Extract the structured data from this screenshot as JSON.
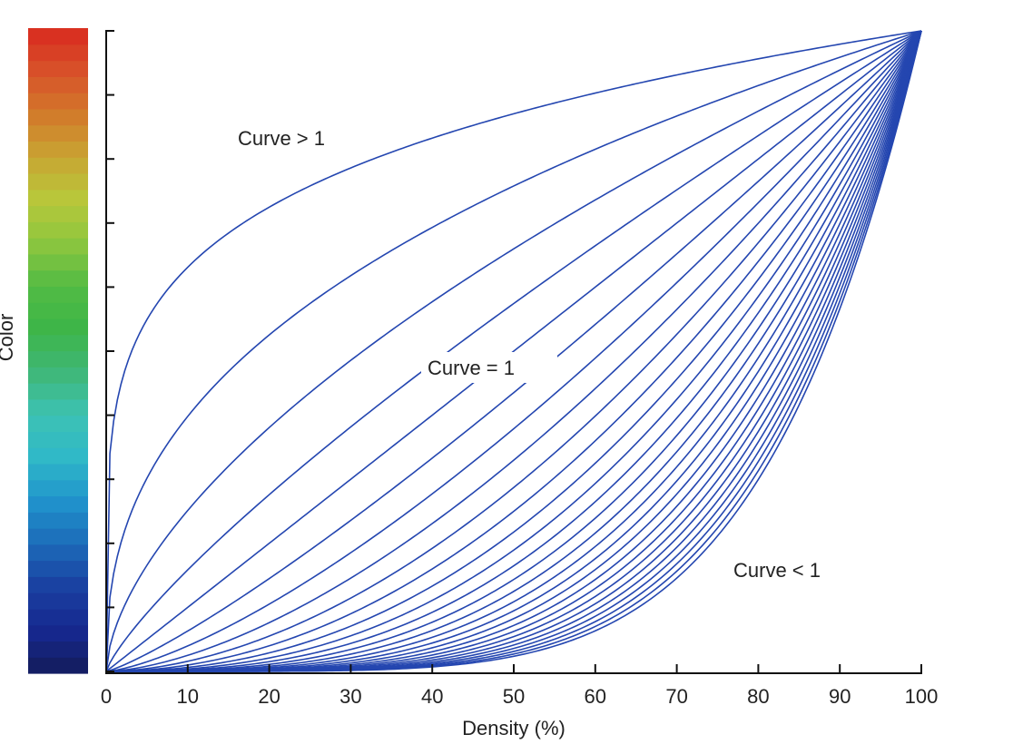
{
  "chart_data": {
    "type": "line",
    "title": "",
    "xlabel": "Density (%)",
    "ylabel": "Color",
    "xlim": [
      0,
      100
    ],
    "ylim": [
      0,
      100
    ],
    "x_ticks": [
      0,
      10,
      20,
      30,
      40,
      50,
      60,
      70,
      80,
      90,
      100
    ],
    "y_ticks_count": 11,
    "y_tick_labels": [],
    "grid": false,
    "legend": "none",
    "line_color": "#2446b0",
    "function": "y = 100 * (x/100)^e",
    "exponents": [
      0.2,
      0.4,
      0.6,
      0.8,
      1.0,
      1.2,
      1.4,
      1.6,
      1.8,
      2.0,
      2.2,
      2.4,
      2.6,
      2.8,
      3.0,
      3.2,
      3.4,
      3.6,
      3.8,
      4.0,
      4.2,
      4.4,
      4.6,
      4.8,
      5.0,
      5.2,
      5.4
    ],
    "series_sample_at_x50": [
      {
        "name": "curve e=0.2",
        "y": 87
      },
      {
        "name": "curve e=0.4",
        "y": 76
      },
      {
        "name": "curve e=0.6",
        "y": 66
      },
      {
        "name": "curve e=0.8",
        "y": 57
      },
      {
        "name": "curve e=1.0 (linear)",
        "y": 50
      },
      {
        "name": "curve e=5.4",
        "y": 2
      }
    ],
    "annotations": [
      {
        "text": "Curve > 1",
        "x": 16,
        "y": 83
      },
      {
        "text": "Curve = 1",
        "x": 39,
        "y": 47
      },
      {
        "text": "Curve < 1",
        "x": 77,
        "y": 15
      }
    ],
    "colorbar": {
      "label": "Color",
      "stops_bottom_to_top": [
        "#141c5a",
        "#16288f",
        "#1a3fa0",
        "#1c6ab8",
        "#2093cc",
        "#2fb8c8",
        "#3cc2b4",
        "#3fb778",
        "#3db548",
        "#52bb44",
        "#8cc63f",
        "#b8c83a",
        "#c8a532",
        "#d27a2a",
        "#d8512a",
        "#d92a1f"
      ]
    }
  },
  "labels": {
    "xlabel": "Density (%)",
    "ylabel": "Color",
    "annot_gt": "Curve > 1",
    "annot_eq": "Curve = 1",
    "annot_lt": "Curve < 1"
  }
}
